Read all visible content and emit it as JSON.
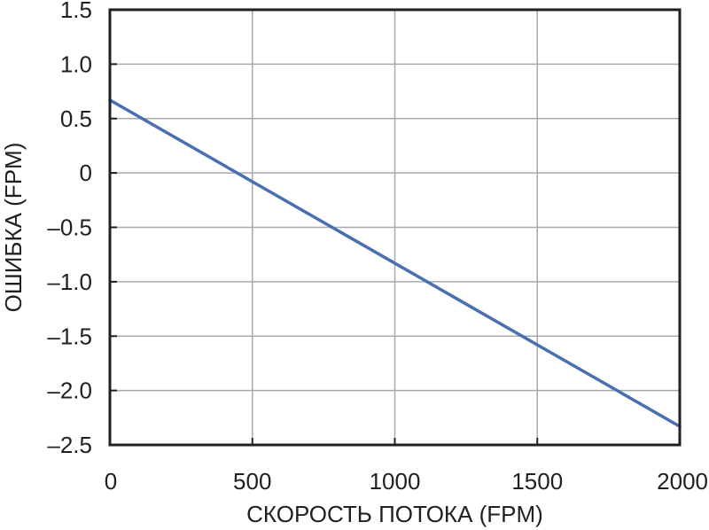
{
  "chart_data": {
    "type": "line",
    "title": "",
    "xlabel": "СКОРОСТЬ ПОТОКА (FPM)",
    "ylabel": "ОШИБКА (FPM)",
    "xlim": [
      0,
      2000
    ],
    "ylim": [
      -2.5,
      1.5
    ],
    "x_ticks": [
      0,
      500,
      1000,
      1500,
      2000
    ],
    "x_tick_labels": [
      "0",
      "500",
      "1000",
      "1500",
      "2000"
    ],
    "y_ticks": [
      1.5,
      1.0,
      0.5,
      0,
      -0.5,
      -1.0,
      -1.5,
      -2.0,
      -2.5
    ],
    "y_tick_labels": [
      "1.5",
      "1.0",
      "0.5",
      "0",
      "–0.5",
      "–1.0",
      "–1.5",
      "–2.0",
      "–2.5"
    ],
    "grid": true,
    "legend": "none",
    "series": [
      {
        "x": [
          0,
          2000
        ],
        "y": [
          0.67,
          -2.33
        ],
        "color": "#4a6fb0"
      }
    ],
    "colors": {
      "grid": "#a7a9ac",
      "frame": "#231f20",
      "line": "#4a6fb0",
      "text": "#231f20"
    }
  }
}
